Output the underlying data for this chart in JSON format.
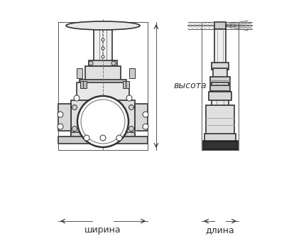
{
  "bg_color": "#ffffff",
  "line_color": "#333333",
  "label_color": "#333333",
  "label_vysota": "высота",
  "label_shirina": "ширина",
  "label_dlina": "длина",
  "fig_width": 4.0,
  "fig_height": 3.46
}
